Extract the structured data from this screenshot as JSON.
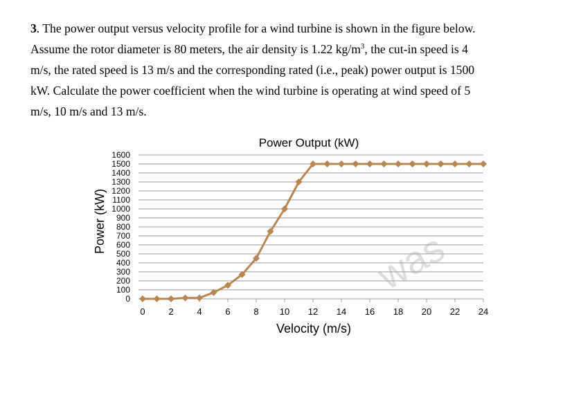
{
  "problem": {
    "number": "3",
    "line1_rest": ". The power output versus velocity profile for a wind turbine is shown in the figure below.",
    "line2_pre": "Assume the rotor diameter is 80 meters, the air density is 1.22 kg/m",
    "line2_sup": "3",
    "line2_post": ", the cut-in speed is 4",
    "line3": "m/s, the rated speed is 13 m/s and the corresponding rated (i.e., peak) power output is 1500",
    "line4": "kW. Calculate the power coefficient when the wind turbine is operating at wind speed of 5",
    "line5": "m/s, 10 m/s and 13 m/s."
  },
  "watermark_text": "was",
  "chart_data": {
    "type": "line",
    "title": "Power Output (kW)",
    "xlabel": "Velocity (m/s)",
    "ylabel": "Power (kW)",
    "xlim": [
      0,
      24
    ],
    "ylim": [
      0,
      1600
    ],
    "x_ticks": [
      0,
      2,
      4,
      6,
      8,
      10,
      12,
      14,
      16,
      18,
      20,
      22,
      24
    ],
    "y_ticks": [
      0,
      100,
      200,
      300,
      400,
      500,
      600,
      700,
      800,
      900,
      1000,
      1100,
      1200,
      1300,
      1400,
      1500,
      1600
    ],
    "grid": true,
    "series": [
      {
        "color": "#b8844f",
        "marker": "diamond",
        "x": [
          0,
          1,
          2,
          3,
          4,
          5,
          6,
          7,
          8,
          9,
          10,
          11,
          12,
          13,
          14,
          15,
          16,
          17,
          18,
          19,
          20,
          21,
          22,
          23,
          24
        ],
        "y": [
          0,
          0,
          0,
          10,
          10,
          70,
          150,
          270,
          450,
          750,
          1000,
          1300,
          1500,
          1500,
          1500,
          1500,
          1500,
          1500,
          1500,
          1500,
          1500,
          1500,
          1500,
          1500,
          1500
        ]
      }
    ]
  }
}
